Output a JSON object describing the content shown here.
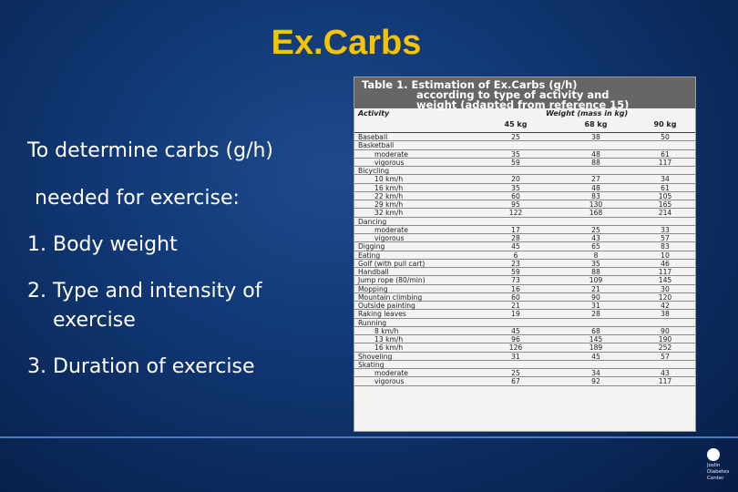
{
  "slide": {
    "title": "Ex.Carbs",
    "intro_line1": "To determine carbs (g/h)",
    "intro_line2": "needed for exercise:",
    "items": [
      {
        "num": "1.",
        "text": "Body weight"
      },
      {
        "num": "2.",
        "text": "Type and intensity of exercise"
      },
      {
        "num": "3.",
        "text": "Duration of exercise"
      }
    ]
  },
  "table": {
    "caption_line1": "Table 1. Estimation of Ex.Carbs (g/h)",
    "caption_line2": "according to type of activity and",
    "caption_line3": "weight (adapted from reference 15)",
    "col_activity": "Activity",
    "col_weight": "Weight (mass in kg)",
    "weights": [
      "45 kg",
      "68 kg",
      "90 kg"
    ],
    "rows": [
      {
        "label": "Baseball",
        "sub": false,
        "v": [
          "25",
          "38",
          "50"
        ]
      },
      {
        "label": "Basketball",
        "sub": false,
        "v": [
          "",
          "",
          ""
        ]
      },
      {
        "label": "moderate",
        "sub": true,
        "v": [
          "35",
          "48",
          "61"
        ]
      },
      {
        "label": "vigorous",
        "sub": true,
        "v": [
          "59",
          "88",
          "117"
        ]
      },
      {
        "label": "Bicycling",
        "sub": false,
        "v": [
          "",
          "",
          ""
        ]
      },
      {
        "label": "10 km/h",
        "sub": true,
        "v": [
          "20",
          "27",
          "34"
        ]
      },
      {
        "label": "16 km/h",
        "sub": true,
        "v": [
          "35",
          "48",
          "61"
        ]
      },
      {
        "label": "22 km/h",
        "sub": true,
        "v": [
          "60",
          "83",
          "105"
        ]
      },
      {
        "label": "29 km/h",
        "sub": true,
        "v": [
          "95",
          "130",
          "165"
        ]
      },
      {
        "label": "32 km/h",
        "sub": true,
        "v": [
          "122",
          "168",
          "214"
        ]
      },
      {
        "label": "Dancing",
        "sub": false,
        "v": [
          "",
          "",
          ""
        ]
      },
      {
        "label": "moderate",
        "sub": true,
        "v": [
          "17",
          "25",
          "33"
        ]
      },
      {
        "label": "vigorous",
        "sub": true,
        "v": [
          "28",
          "43",
          "57"
        ]
      },
      {
        "label": "Digging",
        "sub": false,
        "v": [
          "45",
          "65",
          "83"
        ]
      },
      {
        "label": "Eating",
        "sub": false,
        "v": [
          "6",
          "8",
          "10"
        ]
      },
      {
        "label": "Golf (with pull cart)",
        "sub": false,
        "v": [
          "23",
          "35",
          "46"
        ]
      },
      {
        "label": "Handball",
        "sub": false,
        "v": [
          "59",
          "88",
          "117"
        ]
      },
      {
        "label": "Jump rope (80/min)",
        "sub": false,
        "v": [
          "73",
          "109",
          "145"
        ]
      },
      {
        "label": "Mopping",
        "sub": false,
        "v": [
          "16",
          "21",
          "30"
        ]
      },
      {
        "label": "Mountain climbing",
        "sub": false,
        "v": [
          "60",
          "90",
          "120"
        ]
      },
      {
        "label": "Outside painting",
        "sub": false,
        "v": [
          "21",
          "31",
          "42"
        ]
      },
      {
        "label": "Raking leaves",
        "sub": false,
        "v": [
          "19",
          "28",
          "38"
        ]
      },
      {
        "label": "Running",
        "sub": false,
        "v": [
          "",
          "",
          ""
        ]
      },
      {
        "label": "8 km/h",
        "sub": true,
        "v": [
          "45",
          "68",
          "90"
        ]
      },
      {
        "label": "13 km/h",
        "sub": true,
        "v": [
          "96",
          "145",
          "190"
        ]
      },
      {
        "label": "16 km/h",
        "sub": true,
        "v": [
          "126",
          "189",
          "252"
        ]
      },
      {
        "label": "Shoveling",
        "sub": false,
        "v": [
          "31",
          "45",
          "57"
        ]
      },
      {
        "label": "Skating",
        "sub": false,
        "v": [
          "",
          "",
          ""
        ]
      },
      {
        "label": "moderate",
        "sub": true,
        "v": [
          "25",
          "34",
          "43"
        ]
      },
      {
        "label": "vigorous",
        "sub": true,
        "v": [
          "67",
          "92",
          "117"
        ]
      }
    ]
  },
  "logo": {
    "line1": "Joslin",
    "line2": "Diabetes",
    "line3": "Center"
  }
}
